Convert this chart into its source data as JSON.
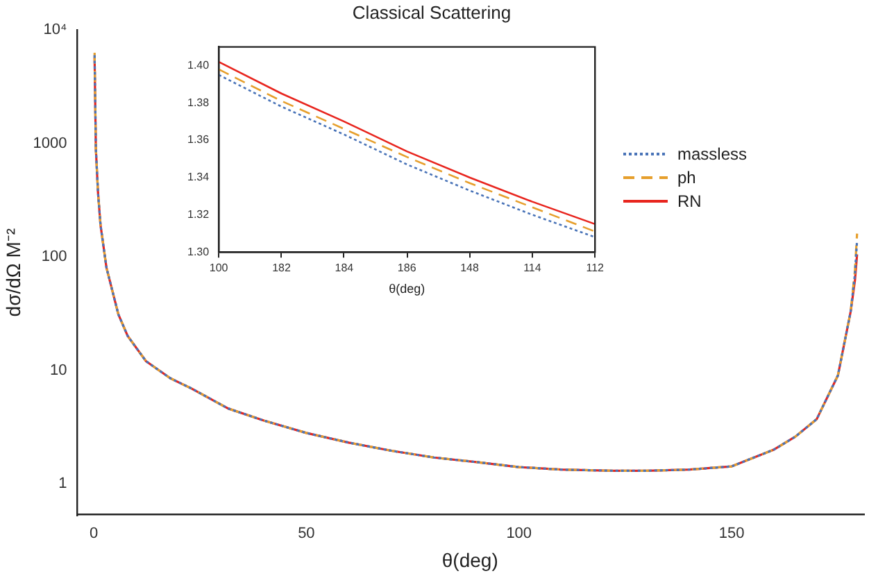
{
  "chart_data": [
    {
      "type": "line",
      "title": "Classical Scattering",
      "xlabel": "θ(deg)",
      "ylabel": "dσ/dΩ M⁻²",
      "log": "y",
      "grid": false,
      "legend": "top right",
      "marker": "none",
      "x": [
        0.2,
        0.5,
        1,
        1.6,
        3,
        5.8,
        8,
        12.3,
        18,
        23,
        31.6,
        40,
        50,
        60,
        70,
        80,
        90,
        100,
        110,
        122,
        130,
        140,
        150,
        160,
        165,
        170,
        175,
        178,
        179,
        179.5
      ],
      "xlim": [
        -4,
        181
      ],
      "xticks": [
        0,
        50,
        100,
        150
      ],
      "ylim": [
        0.53,
        10000
      ],
      "yticks": [
        1,
        10,
        100,
        1000,
        {
          "value": 10000,
          "label": "10⁴"
        }
      ],
      "series": [
        {
          "name": "massless",
          "color": "#4a74b8",
          "line_style": "dotted",
          "values": [
            6000,
            900,
            370,
            190,
            80,
            31,
            20,
            12,
            8.5,
            6.9,
            4.6,
            3.6,
            2.8,
            2.3,
            1.95,
            1.7,
            1.55,
            1.4,
            1.33,
            1.3,
            1.3,
            1.33,
            1.42,
            2.0,
            2.6,
            3.7,
            9,
            33,
            70,
            140
          ]
        },
        {
          "name": "ph",
          "color": "#e69f2c",
          "line_style": "dashed",
          "values": [
            6300,
            900,
            370,
            190,
            80,
            31,
            20,
            12,
            8.5,
            6.9,
            4.6,
            3.6,
            2.8,
            2.3,
            1.95,
            1.7,
            1.55,
            1.4,
            1.33,
            1.3,
            1.3,
            1.33,
            1.42,
            2.0,
            2.6,
            3.7,
            9,
            33,
            75,
            160
          ]
        },
        {
          "name": "RN",
          "color": "#e8251e",
          "line_style": "solid",
          "values": [
            5700,
            900,
            370,
            190,
            80,
            31,
            20,
            12,
            8.5,
            6.9,
            4.6,
            3.6,
            2.8,
            2.3,
            1.95,
            1.7,
            1.55,
            1.4,
            1.33,
            1.3,
            1.3,
            1.33,
            1.42,
            2.0,
            2.6,
            3.7,
            9,
            33,
            62,
            105
          ]
        }
      ]
    },
    {
      "type": "line",
      "xlabel": "θ(deg)",
      "grid": false,
      "marker": "none",
      "categories": [
        "100",
        "182",
        "184",
        "186",
        "148",
        "114",
        "112"
      ],
      "ylim": [
        1.3,
        1.41
      ],
      "yticks": [
        {
          "value": 1.3,
          "label": "1.30"
        },
        {
          "value": 1.32,
          "label": "1.32"
        },
        {
          "value": 1.34,
          "label": "1.34"
        },
        {
          "value": 1.36,
          "label": "1.36"
        },
        {
          "value": 1.38,
          "label": "1.38"
        },
        {
          "value": 1.4,
          "label": "1.40"
        }
      ],
      "series": [
        {
          "color": "#4a74b8",
          "line_style": "dotted",
          "values": [
            1.395,
            1.378,
            1.363,
            1.347,
            1.333,
            1.32,
            1.308
          ]
        },
        {
          "color": "#e69f2c",
          "line_style": "dashed",
          "values": [
            1.398,
            1.381,
            1.366,
            1.351,
            1.337,
            1.324,
            1.311
          ]
        },
        {
          "color": "#e8251e",
          "line_style": "solid",
          "values": [
            1.402,
            1.385,
            1.37,
            1.354,
            1.34,
            1.327,
            1.315
          ]
        }
      ]
    }
  ]
}
